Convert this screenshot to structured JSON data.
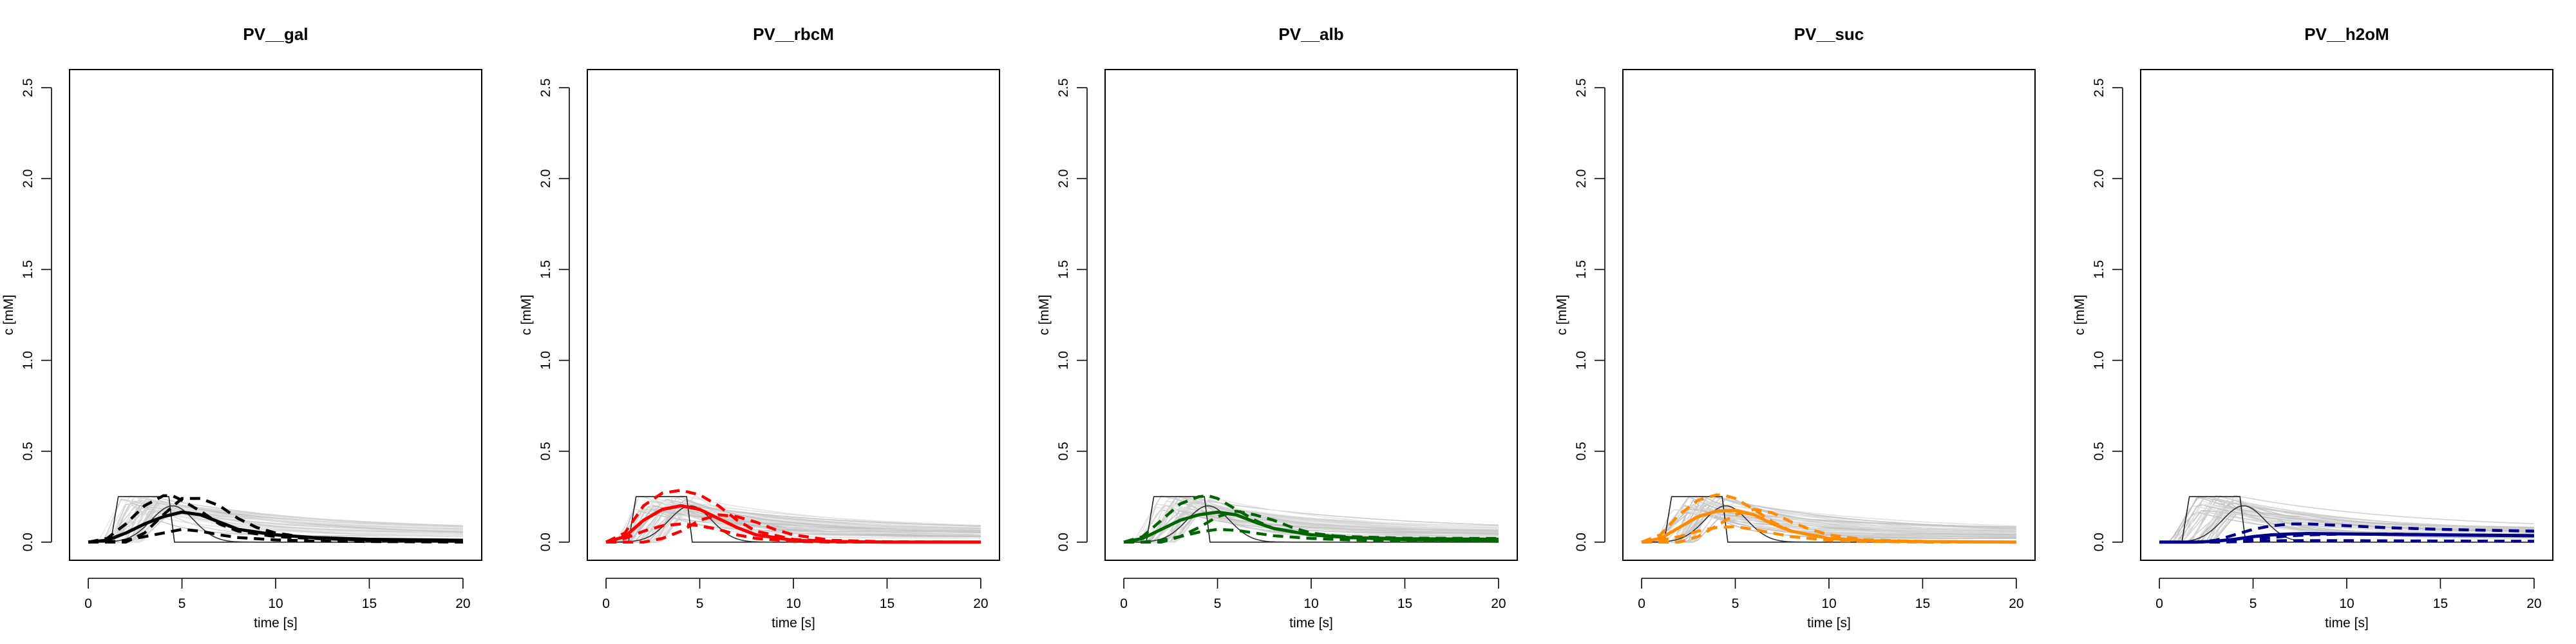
{
  "chart_data": [
    {
      "type": "line",
      "title": "PV__gal",
      "xlabel": "time [s]",
      "ylabel": "c [mM]",
      "xlim": [
        -1,
        21
      ],
      "ylim": [
        -0.1,
        2.6
      ],
      "xticks": [
        0,
        5,
        10,
        15,
        20
      ],
      "yticks": [
        0.0,
        0.5,
        1.0,
        1.5,
        2.0,
        2.5
      ],
      "grid": false,
      "color": "#000000",
      "gray_curves_approx": 40,
      "series": [
        {
          "style": "bold-solid",
          "x": [
            0,
            1,
            2,
            3,
            4,
            5,
            6,
            7,
            8,
            10,
            12,
            15,
            20
          ],
          "y": [
            0.0,
            0.01,
            0.05,
            0.1,
            0.14,
            0.165,
            0.15,
            0.11,
            0.07,
            0.04,
            0.025,
            0.015,
            0.01
          ]
        },
        {
          "style": "dashed-high",
          "x": [
            0,
            1,
            2,
            3,
            4,
            4.5,
            5,
            6,
            7,
            8,
            10,
            12,
            15,
            20
          ],
          "y": [
            0.0,
            0.02,
            0.1,
            0.2,
            0.255,
            0.255,
            0.23,
            0.17,
            0.1,
            0.06,
            0.03,
            0.02,
            0.012,
            0.008
          ]
        },
        {
          "style": "dashed-late",
          "x": [
            0,
            2,
            3,
            4,
            5,
            6,
            7,
            8,
            9,
            10,
            12,
            15,
            20
          ],
          "y": [
            0.0,
            0.0,
            0.05,
            0.15,
            0.24,
            0.24,
            0.2,
            0.13,
            0.08,
            0.05,
            0.02,
            0.01,
            0.005
          ]
        },
        {
          "style": "dashed-low",
          "x": [
            0,
            1,
            2,
            3,
            4,
            5,
            6,
            7,
            8,
            10,
            12,
            15,
            20
          ],
          "y": [
            0.0,
            0.0,
            0.01,
            0.03,
            0.05,
            0.07,
            0.06,
            0.04,
            0.025,
            0.012,
            0.006,
            0.003,
            0.0
          ]
        }
      ]
    },
    {
      "type": "line",
      "title": "PV__rbcM",
      "xlabel": "time [s]",
      "ylabel": "c [mM]",
      "xlim": [
        -1,
        21
      ],
      "ylim": [
        -0.1,
        2.6
      ],
      "xticks": [
        0,
        5,
        10,
        15,
        20
      ],
      "yticks": [
        0.0,
        0.5,
        1.0,
        1.5,
        2.0,
        2.5
      ],
      "grid": false,
      "color": "#ff0000",
      "gray_curves_approx": 40,
      "series": [
        {
          "style": "bold-solid",
          "x": [
            0,
            1,
            2,
            3,
            4,
            5,
            6,
            7,
            8,
            10,
            12,
            15,
            20
          ],
          "y": [
            0.0,
            0.03,
            0.12,
            0.18,
            0.2,
            0.18,
            0.13,
            0.08,
            0.04,
            0.01,
            0.003,
            0.0,
            0.0
          ]
        },
        {
          "style": "dashed-high",
          "x": [
            0,
            1,
            2,
            3,
            4,
            5,
            6,
            7,
            8,
            10,
            12,
            15,
            20
          ],
          "y": [
            0.0,
            0.05,
            0.2,
            0.27,
            0.285,
            0.26,
            0.2,
            0.12,
            0.06,
            0.015,
            0.004,
            0.0,
            0.0
          ]
        },
        {
          "style": "dashed-late",
          "x": [
            0,
            2,
            3,
            4,
            5,
            6,
            7,
            8,
            9,
            10,
            12,
            15,
            20
          ],
          "y": [
            0.0,
            0.0,
            0.02,
            0.06,
            0.12,
            0.15,
            0.14,
            0.11,
            0.07,
            0.04,
            0.01,
            0.002,
            0.0
          ]
        },
        {
          "style": "dashed-low",
          "x": [
            0,
            1,
            2,
            3,
            4,
            5,
            6,
            7,
            8,
            10,
            12,
            15,
            20
          ],
          "y": [
            0.0,
            0.02,
            0.06,
            0.09,
            0.1,
            0.09,
            0.07,
            0.04,
            0.02,
            0.005,
            0.0,
            0.0,
            0.0
          ]
        }
      ]
    },
    {
      "type": "line",
      "title": "PV__alb",
      "xlabel": "time [s]",
      "ylabel": "c [mM]",
      "xlim": [
        -1,
        21
      ],
      "ylim": [
        -0.1,
        2.6
      ],
      "xticks": [
        0,
        5,
        10,
        15,
        20
      ],
      "yticks": [
        0.0,
        0.5,
        1.0,
        1.5,
        2.0,
        2.5
      ],
      "grid": false,
      "color": "#006400",
      "gray_curves_approx": 40,
      "series": [
        {
          "style": "bold-solid",
          "x": [
            0,
            1,
            2,
            3,
            4,
            5,
            6,
            7,
            8,
            10,
            12,
            15,
            20
          ],
          "y": [
            0.0,
            0.02,
            0.07,
            0.12,
            0.15,
            0.165,
            0.15,
            0.11,
            0.075,
            0.04,
            0.025,
            0.018,
            0.015
          ]
        },
        {
          "style": "dashed-high",
          "x": [
            0,
            1,
            2,
            3,
            4,
            4.5,
            5,
            6,
            7,
            8,
            10,
            12,
            15,
            20
          ],
          "y": [
            0.0,
            0.03,
            0.12,
            0.21,
            0.25,
            0.255,
            0.24,
            0.18,
            0.12,
            0.075,
            0.04,
            0.03,
            0.022,
            0.02
          ]
        },
        {
          "style": "dashed-late",
          "x": [
            0,
            2,
            3,
            4,
            5,
            6,
            7,
            8,
            9,
            10,
            12,
            15,
            20
          ],
          "y": [
            0.0,
            0.0,
            0.03,
            0.08,
            0.14,
            0.17,
            0.15,
            0.12,
            0.08,
            0.05,
            0.025,
            0.012,
            0.01
          ]
        },
        {
          "style": "dashed-low",
          "x": [
            0,
            1,
            2,
            3,
            4,
            5,
            6,
            7,
            8,
            10,
            12,
            15,
            20
          ],
          "y": [
            0.0,
            0.0,
            0.01,
            0.03,
            0.055,
            0.07,
            0.065,
            0.05,
            0.035,
            0.02,
            0.012,
            0.008,
            0.005
          ]
        }
      ]
    },
    {
      "type": "line",
      "title": "PV__suc",
      "xlabel": "time [s]",
      "ylabel": "c [mM]",
      "xlim": [
        -1,
        21
      ],
      "ylim": [
        -0.1,
        2.6
      ],
      "xticks": [
        0,
        5,
        10,
        15,
        20
      ],
      "yticks": [
        0.0,
        0.5,
        1.0,
        1.5,
        2.0,
        2.5
      ],
      "grid": false,
      "color": "#ff8c00",
      "gray_curves_approx": 40,
      "series": [
        {
          "style": "bold-solid",
          "x": [
            0,
            1,
            2,
            3,
            4,
            5,
            6,
            7,
            8,
            10,
            12,
            15,
            20
          ],
          "y": [
            0.0,
            0.02,
            0.08,
            0.14,
            0.17,
            0.175,
            0.15,
            0.1,
            0.06,
            0.02,
            0.008,
            0.003,
            0.0
          ]
        },
        {
          "style": "dashed-high",
          "x": [
            0,
            1,
            2,
            3,
            4,
            4.5,
            5,
            6,
            7,
            8,
            10,
            12,
            15,
            20
          ],
          "y": [
            0.0,
            0.04,
            0.15,
            0.23,
            0.26,
            0.255,
            0.24,
            0.18,
            0.11,
            0.06,
            0.02,
            0.008,
            0.003,
            0.0
          ]
        },
        {
          "style": "dashed-late",
          "x": [
            0,
            2,
            3,
            4,
            5,
            6,
            7,
            8,
            9,
            10,
            12,
            15,
            20
          ],
          "y": [
            0.0,
            0.0,
            0.03,
            0.09,
            0.15,
            0.18,
            0.16,
            0.11,
            0.07,
            0.04,
            0.012,
            0.004,
            0.0
          ]
        },
        {
          "style": "dashed-low",
          "x": [
            0,
            1,
            2,
            3,
            4,
            5,
            6,
            7,
            8,
            10,
            12,
            15,
            20
          ],
          "y": [
            0.0,
            0.01,
            0.03,
            0.06,
            0.08,
            0.085,
            0.07,
            0.05,
            0.03,
            0.01,
            0.004,
            0.0,
            0.0
          ]
        }
      ]
    },
    {
      "type": "line",
      "title": "PV__h2oM",
      "xlabel": "time [s]",
      "ylabel": "c [mM]",
      "xlim": [
        -1,
        21
      ],
      "ylim": [
        -0.1,
        2.6
      ],
      "xticks": [
        0,
        5,
        10,
        15,
        20
      ],
      "yticks": [
        0.0,
        0.5,
        1.0,
        1.5,
        2.0,
        2.5
      ],
      "grid": false,
      "color": "#00008b",
      "gray_curves_approx": 40,
      "series": [
        {
          "style": "bold-solid",
          "x": [
            0,
            2,
            3,
            4,
            5,
            6,
            7,
            8,
            10,
            12,
            15,
            20
          ],
          "y": [
            0.0,
            0.0,
            0.005,
            0.015,
            0.03,
            0.04,
            0.045,
            0.047,
            0.045,
            0.043,
            0.04,
            0.035
          ]
        },
        {
          "style": "dashed-high",
          "x": [
            0,
            2,
            3,
            4,
            5,
            6,
            7,
            8,
            10,
            12,
            15,
            20
          ],
          "y": [
            0.0,
            0.0,
            0.01,
            0.04,
            0.07,
            0.09,
            0.1,
            0.1,
            0.09,
            0.08,
            0.07,
            0.06
          ]
        },
        {
          "style": "dashed-late",
          "x": [
            0,
            2,
            3,
            4,
            5,
            6,
            7,
            8,
            10,
            12,
            15,
            20
          ],
          "y": [
            0.0,
            0.0,
            0.0,
            0.005,
            0.015,
            0.025,
            0.035,
            0.04,
            0.045,
            0.045,
            0.04,
            0.035
          ]
        },
        {
          "style": "dashed-low",
          "x": [
            0,
            2,
            3,
            4,
            5,
            6,
            7,
            8,
            10,
            12,
            15,
            20
          ],
          "y": [
            0.0,
            0.0,
            0.0,
            0.002,
            0.005,
            0.007,
            0.008,
            0.008,
            0.008,
            0.007,
            0.006,
            0.005
          ]
        }
      ]
    }
  ]
}
